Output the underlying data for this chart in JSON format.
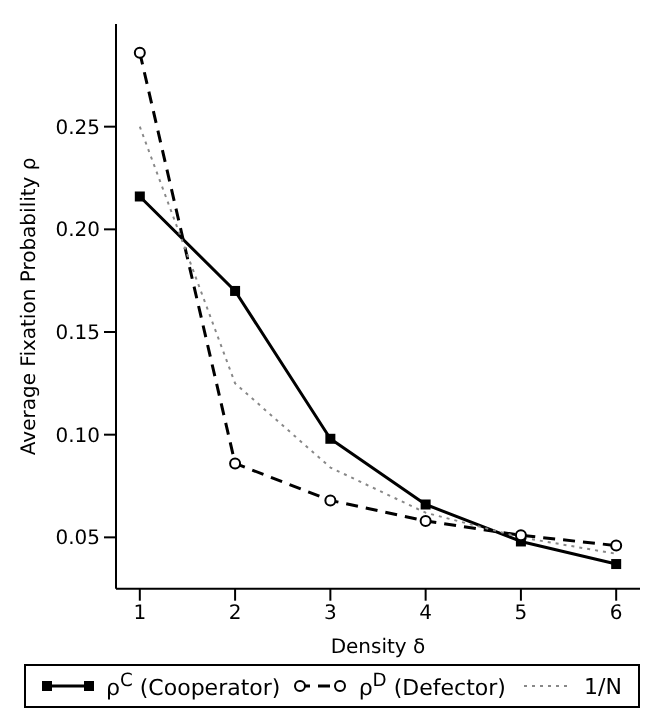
{
  "chart_data": {
    "type": "line",
    "xlabel": "Density δ",
    "ylabel": "Average Fixation Probability ρ",
    "x": [
      1,
      2,
      3,
      4,
      5,
      6
    ],
    "xlim": [
      0.75,
      6.25
    ],
    "xticks": [
      1,
      2,
      3,
      4,
      5,
      6
    ],
    "ylim": [
      0.025,
      0.3
    ],
    "yticks": [
      0.05,
      {
        "value": 0.1,
        "label": "0.10"
      },
      0.15,
      {
        "value": 0.2,
        "label": "0.20"
      },
      0.25
    ],
    "grid": false,
    "legend": "bottom",
    "series": [
      {
        "name": "ρ$^{C}$ (Cooperator)",
        "color": "#000000",
        "values": [
          0.216,
          0.17,
          0.098,
          0.066,
          0.048,
          0.037
        ],
        "marker": "square",
        "line_style": "solid"
      },
      {
        "name": "ρ$^{D}$ (Defector)",
        "color": "#000000",
        "values": [
          0.286,
          0.086,
          0.068,
          0.058,
          0.051,
          0.046
        ],
        "marker": "circle",
        "line_style": "dashed"
      },
      {
        "name": "1/N",
        "color": "#888888",
        "values": [
          0.25,
          0.125,
          0.084,
          0.062,
          0.05,
          0.042
        ],
        "marker": "none",
        "line_style": "dotted"
      }
    ]
  }
}
